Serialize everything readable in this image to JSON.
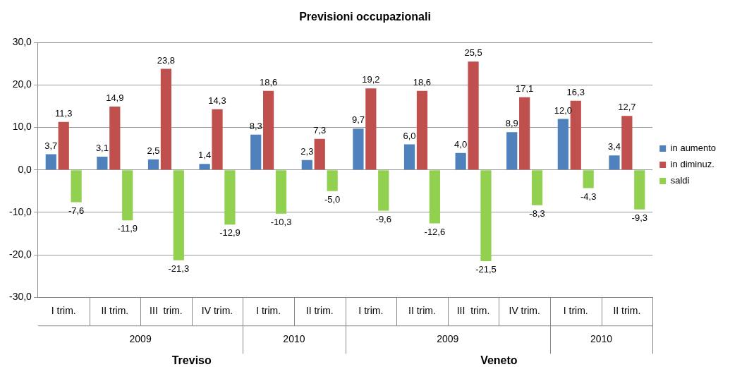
{
  "chart_data": {
    "type": "bar",
    "title": "Previsioni occupazionali",
    "categories": [
      "I trim.",
      "II trim.",
      "III  trim.",
      "IV trim.",
      "I trim.",
      "II trim.",
      "I trim.",
      "II trim.",
      "III  trim.",
      "IV trim.",
      "I trim.",
      "II trim."
    ],
    "series": [
      {
        "name": "in aumento",
        "color": "#4f81bd",
        "values": [
          3.7,
          3.1,
          2.5,
          1.4,
          8.3,
          2.3,
          9.7,
          6.0,
          4.0,
          8.9,
          12.0,
          3.4
        ],
        "value_labels": [
          "3,7",
          "3,1",
          "2,5",
          "1,4",
          "8,3",
          "2,3",
          "9,7",
          "6,0",
          "4,0",
          "8,9",
          "12,0",
          "3,4"
        ]
      },
      {
        "name": "in diminuz.",
        "color": "#c0504d",
        "values": [
          11.3,
          14.9,
          23.8,
          14.3,
          18.6,
          7.3,
          19.2,
          18.6,
          25.5,
          17.1,
          16.3,
          12.7
        ],
        "value_labels": [
          "11,3",
          "14,9",
          "23,8",
          "14,3",
          "18,6",
          "7,3",
          "19,2",
          "18,6",
          "25,5",
          "17,1",
          "16,3",
          "12,7"
        ]
      },
      {
        "name": "saldi",
        "color": "#92d050",
        "values": [
          -7.6,
          -11.9,
          -21.3,
          -12.9,
          -10.3,
          -5.0,
          -9.6,
          -12.6,
          -21.5,
          -8.3,
          -4.3,
          -9.3
        ],
        "value_labels": [
          "-7,6",
          "-11,9",
          "-21,3",
          "-12,9",
          "-10,3",
          "-5,0",
          "-9,6",
          "-12,6",
          "-21,5",
          "-8,3",
          "-4,3",
          "-9,3"
        ]
      }
    ],
    "ylim": [
      -30,
      30
    ],
    "yticks": [
      {
        "value": -30,
        "label": "-30,0"
      },
      {
        "value": -20,
        "label": "-20,0"
      },
      {
        "value": -10,
        "label": "-10,0"
      },
      {
        "value": 0,
        "label": "0,0"
      },
      {
        "value": 10,
        "label": "10,0"
      },
      {
        "value": 20,
        "label": "20,0"
      },
      {
        "value": 30,
        "label": "30,0"
      }
    ],
    "grid": "y",
    "legend": "right",
    "annotations": [
      "2009",
      "2010",
      "2009",
      "2010",
      "Treviso",
      "Veneto"
    ]
  }
}
